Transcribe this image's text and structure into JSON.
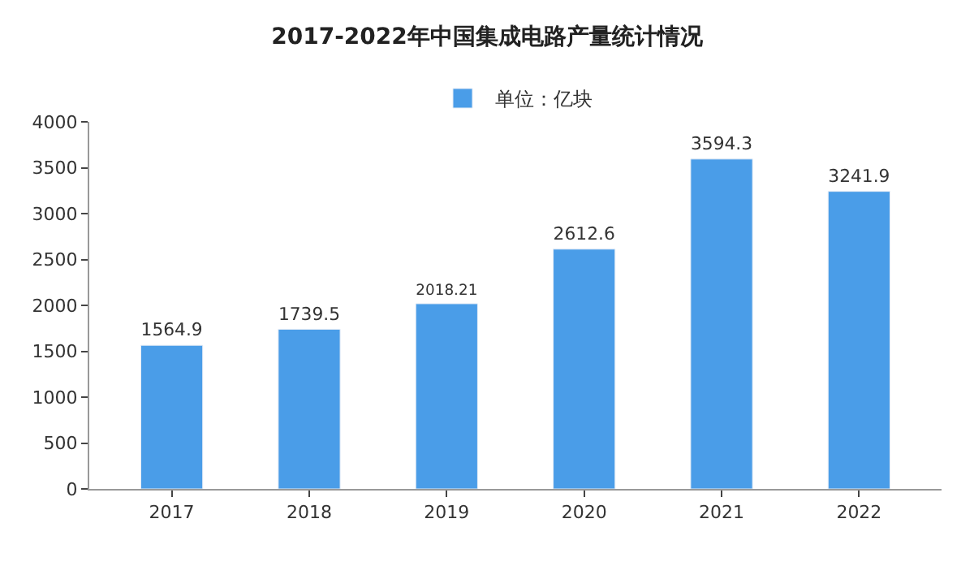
{
  "chart_data": {
    "type": "bar",
    "title": "2017-2022年中国集成电路产量统计情况",
    "categories": [
      "2017",
      "2018",
      "2019",
      "2020",
      "2021",
      "2022"
    ],
    "series": [
      {
        "name": "单位：亿块",
        "color": "#4a9de8",
        "values": [
          1564.9,
          1739.5,
          2018.21,
          2612.6,
          3594.3,
          3241.9
        ]
      }
    ],
    "ylim": [
      0,
      4000
    ],
    "yticks": [
      0,
      500,
      1000,
      1500,
      2000,
      2500,
      3000,
      3500,
      4000
    ],
    "grid": false,
    "legend": "top",
    "data_labels": true
  }
}
